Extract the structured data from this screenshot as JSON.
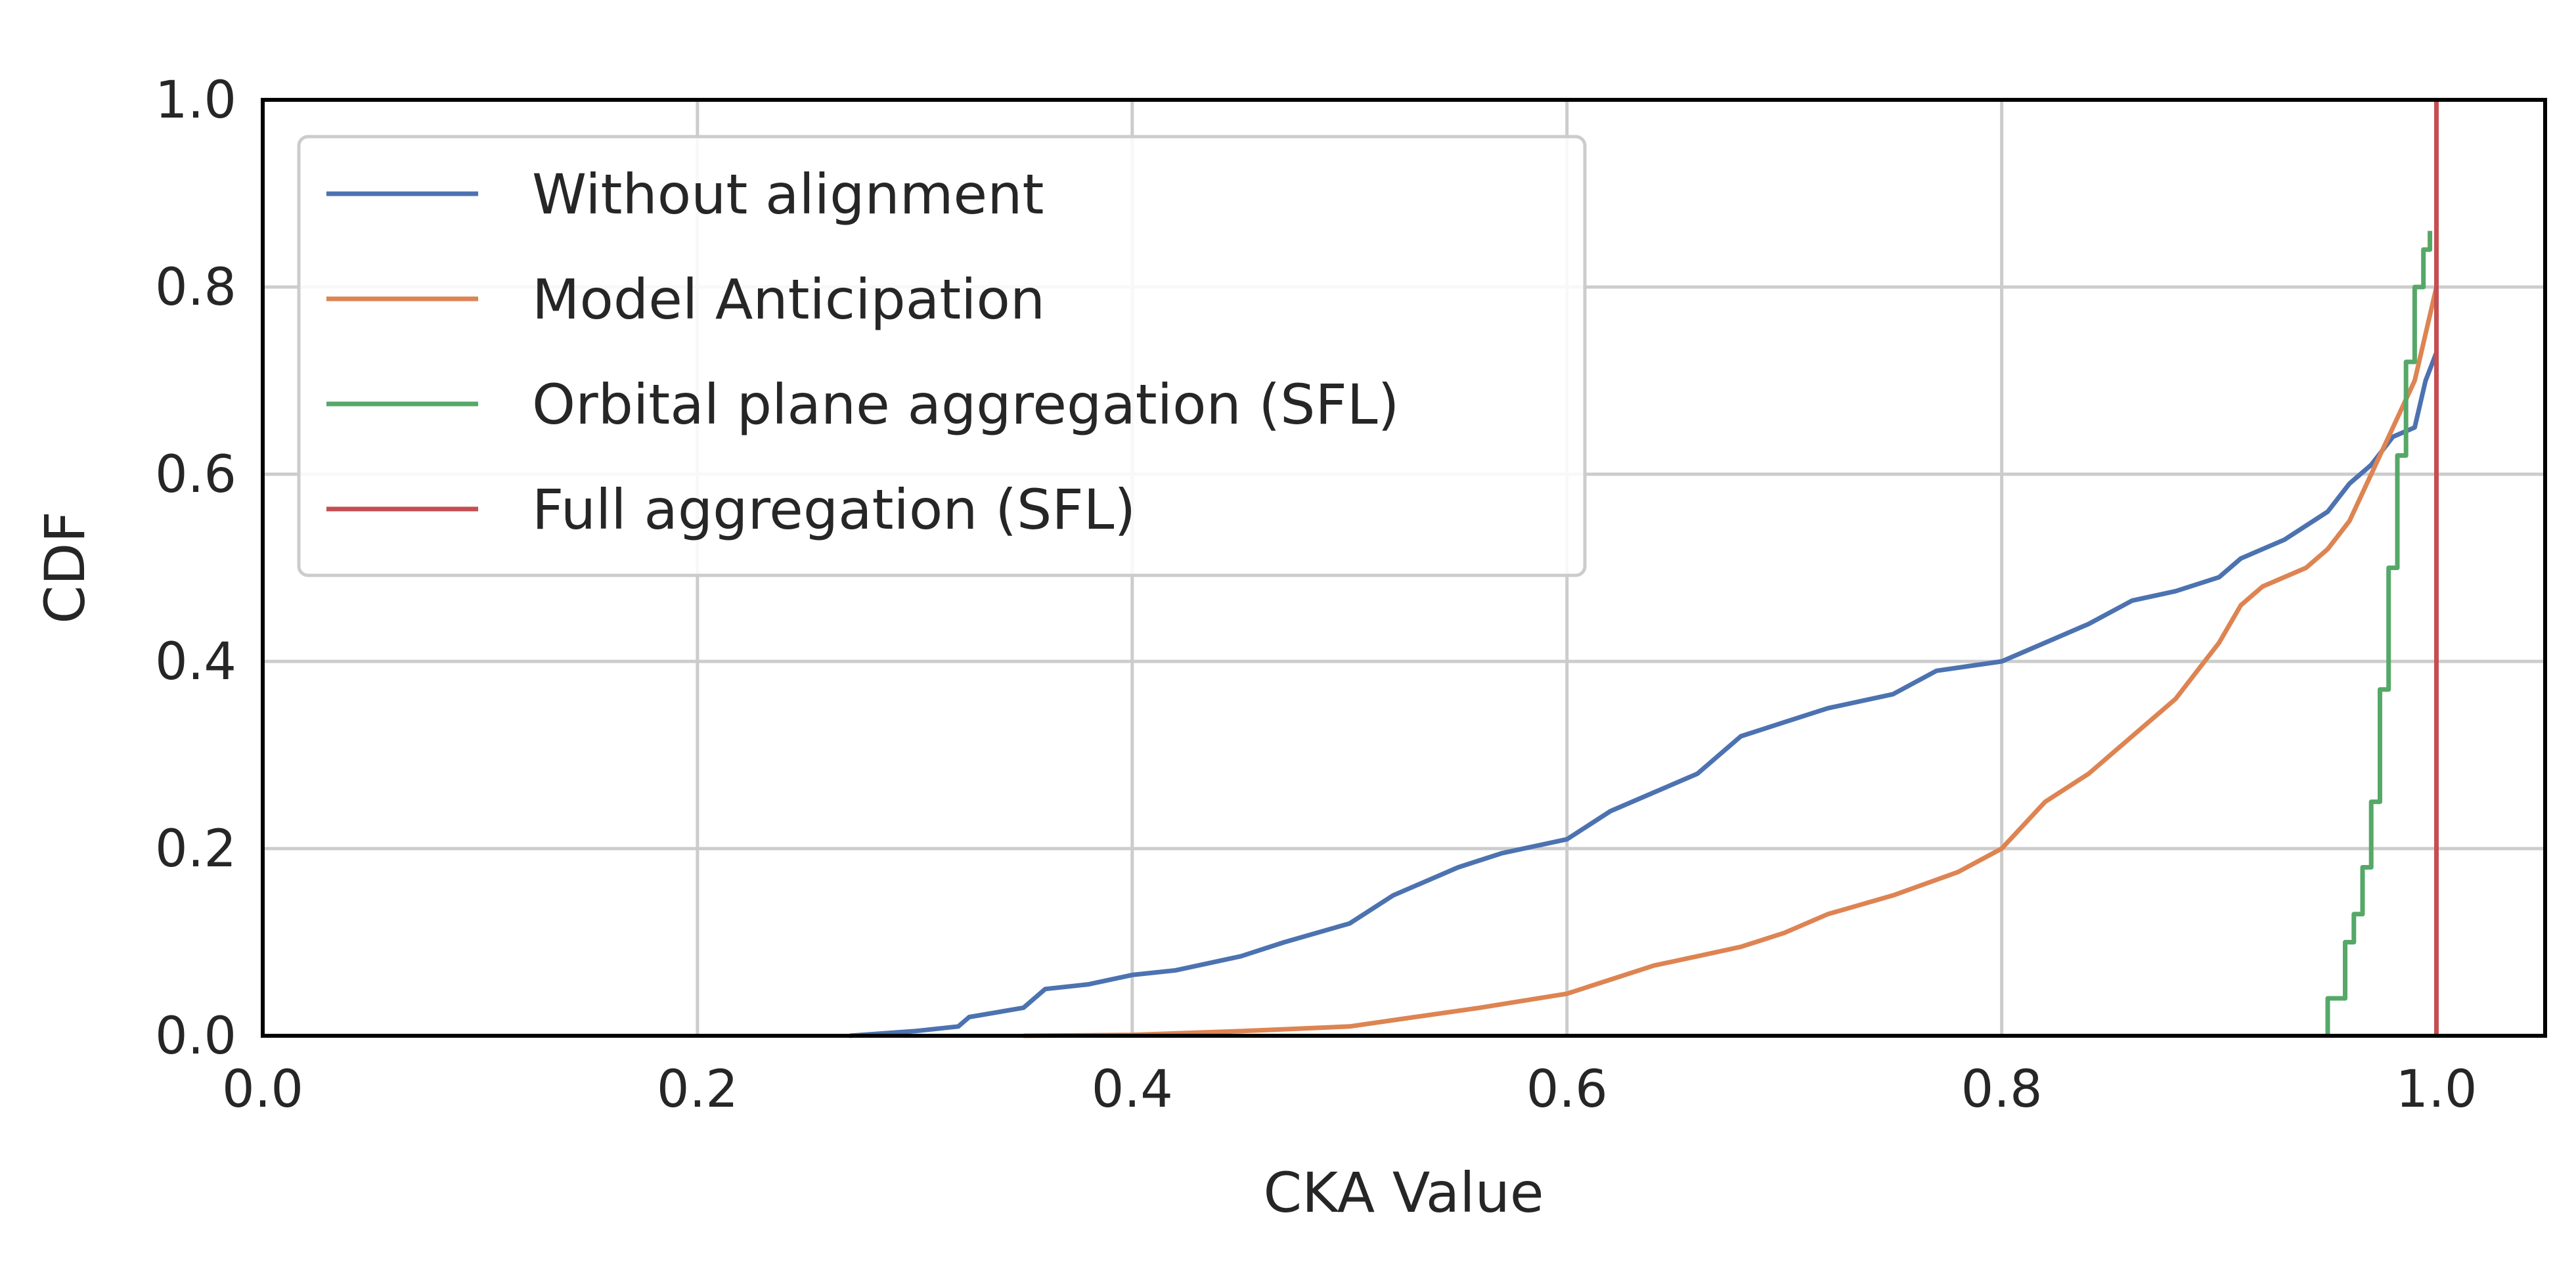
{
  "chart_data": {
    "type": "line",
    "xlabel": "CKA Value",
    "ylabel": "CDF",
    "xlim": [
      0.0,
      1.05
    ],
    "ylim": [
      0.0,
      1.0
    ],
    "xticks": [
      "0.0",
      "0.2",
      "0.4",
      "0.6",
      "0.8",
      "1.0"
    ],
    "yticks": [
      "0.0",
      "0.2",
      "0.4",
      "0.6",
      "0.8",
      "1.0"
    ],
    "grid": true,
    "legend_position": "top-left",
    "series": [
      {
        "name": "Without alignment",
        "color": "#4c72b0",
        "x": [
          0.27,
          0.3,
          0.32,
          0.325,
          0.35,
          0.36,
          0.38,
          0.4,
          0.42,
          0.45,
          0.47,
          0.5,
          0.52,
          0.55,
          0.57,
          0.6,
          0.62,
          0.64,
          0.66,
          0.67,
          0.68,
          0.7,
          0.72,
          0.75,
          0.77,
          0.8,
          0.82,
          0.84,
          0.86,
          0.88,
          0.9,
          0.91,
          0.93,
          0.95,
          0.96,
          0.97,
          0.98,
          0.99,
          0.995,
          1.0
        ],
        "y": [
          0.0,
          0.005,
          0.01,
          0.02,
          0.03,
          0.05,
          0.055,
          0.065,
          0.07,
          0.085,
          0.1,
          0.12,
          0.15,
          0.18,
          0.195,
          0.21,
          0.24,
          0.26,
          0.28,
          0.3,
          0.32,
          0.335,
          0.35,
          0.365,
          0.39,
          0.4,
          0.42,
          0.44,
          0.465,
          0.475,
          0.49,
          0.51,
          0.53,
          0.56,
          0.59,
          0.61,
          0.64,
          0.65,
          0.7,
          0.73
        ]
      },
      {
        "name": "Model Anticipation",
        "color": "#dd8452",
        "x": [
          0.35,
          0.4,
          0.45,
          0.5,
          0.53,
          0.56,
          0.6,
          0.62,
          0.64,
          0.66,
          0.68,
          0.7,
          0.72,
          0.75,
          0.78,
          0.8,
          0.82,
          0.84,
          0.86,
          0.88,
          0.9,
          0.91,
          0.92,
          0.94,
          0.95,
          0.96,
          0.97,
          0.98,
          0.99,
          0.995,
          1.0
        ],
        "y": [
          0.0,
          0.001,
          0.005,
          0.01,
          0.02,
          0.03,
          0.045,
          0.06,
          0.075,
          0.085,
          0.095,
          0.11,
          0.13,
          0.15,
          0.175,
          0.2,
          0.25,
          0.28,
          0.32,
          0.36,
          0.42,
          0.46,
          0.48,
          0.5,
          0.52,
          0.55,
          0.6,
          0.65,
          0.7,
          0.75,
          0.8
        ]
      },
      {
        "name": "Orbital plane aggregation (SFL)",
        "color": "#55a868",
        "x": [
          0.95,
          0.95,
          0.958,
          0.958,
          0.962,
          0.962,
          0.966,
          0.966,
          0.97,
          0.97,
          0.974,
          0.974,
          0.978,
          0.978,
          0.982,
          0.982,
          0.986,
          0.986,
          0.99,
          0.99,
          0.994,
          0.994,
          0.997,
          0.997
        ],
        "y": [
          0.0,
          0.04,
          0.04,
          0.1,
          0.1,
          0.13,
          0.13,
          0.18,
          0.18,
          0.25,
          0.25,
          0.37,
          0.37,
          0.5,
          0.5,
          0.62,
          0.62,
          0.72,
          0.72,
          0.8,
          0.8,
          0.84,
          0.84,
          0.86
        ]
      },
      {
        "name": "Full aggregation (SFL)",
        "color": "#c44e52",
        "x": [
          1.0,
          1.0
        ],
        "y": [
          0.0,
          1.0
        ]
      }
    ]
  }
}
